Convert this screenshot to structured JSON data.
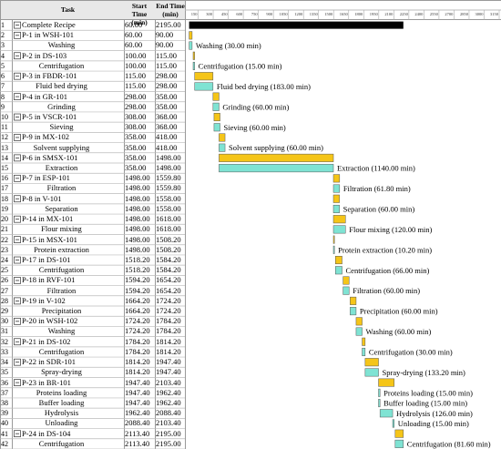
{
  "chart_data": {
    "type": "gantt",
    "columns": [
      "Task",
      "Start Time (min)",
      "End Time (min)"
    ],
    "xlim": [
      0,
      3150
    ],
    "xticks": [
      150,
      300,
      450,
      600,
      750,
      900,
      1050,
      1200,
      1350,
      1500,
      1650,
      1800,
      1950,
      2100,
      2250,
      2400,
      2550,
      2700,
      2850,
      3000,
      3150
    ],
    "colors": {
      "recipe": "#000000",
      "procedure": "#f5c518",
      "operation": "#7fe3d3"
    },
    "rows": [
      {
        "num": "1",
        "task": "Complete Recipe",
        "start": "60.00",
        "end": "2195.00",
        "kind": "recipe"
      },
      {
        "num": "2",
        "task": "P-1 in WSH-101",
        "start": "60.00",
        "end": "90.00",
        "kind": "procedure"
      },
      {
        "num": "3",
        "task": "Washing",
        "start": "60.00",
        "end": "90.00",
        "kind": "operation",
        "bar_label": "Washing (30.00 min)"
      },
      {
        "num": "4",
        "task": "P-2 in DS-103",
        "start": "100.00",
        "end": "115.00",
        "kind": "procedure"
      },
      {
        "num": "5",
        "task": "Centrifugation",
        "start": "100.00",
        "end": "115.00",
        "kind": "operation",
        "bar_label": "Centrifugation (15.00 min)"
      },
      {
        "num": "6",
        "task": "P-3 in FBDR-101",
        "start": "115.00",
        "end": "298.00",
        "kind": "procedure"
      },
      {
        "num": "7",
        "task": "Fluid bed drying",
        "start": "115.00",
        "end": "298.00",
        "kind": "operation",
        "bar_label": "Fluid bed drying (183.00 min)"
      },
      {
        "num": "8",
        "task": "P-4 in GR-101",
        "start": "298.00",
        "end": "358.00",
        "kind": "procedure"
      },
      {
        "num": "9",
        "task": "Grinding",
        "start": "298.00",
        "end": "358.00",
        "kind": "operation",
        "bar_label": "Grinding (60.00 min)"
      },
      {
        "num": "10",
        "task": "P-5 in VSCR-101",
        "start": "308.00",
        "end": "368.00",
        "kind": "procedure"
      },
      {
        "num": "11",
        "task": "Sieving",
        "start": "308.00",
        "end": "368.00",
        "kind": "operation",
        "bar_label": "Sieving (60.00 min)"
      },
      {
        "num": "12",
        "task": "P-9 in MX-102",
        "start": "358.00",
        "end": "418.00",
        "kind": "procedure"
      },
      {
        "num": "13",
        "task": "Solvent supplying",
        "start": "358.00",
        "end": "418.00",
        "kind": "operation",
        "bar_label": "Solvent supplying (60.00 min)"
      },
      {
        "num": "14",
        "task": "P-6 in SMSX-101",
        "start": "358.00",
        "end": "1498.00",
        "kind": "procedure"
      },
      {
        "num": "15",
        "task": "Extraction",
        "start": "358.00",
        "end": "1498.00",
        "kind": "operation",
        "bar_label": "Extraction (1140.00 min)"
      },
      {
        "num": "16",
        "task": "P-7 in ESP-101",
        "start": "1498.00",
        "end": "1559.80",
        "kind": "procedure"
      },
      {
        "num": "17",
        "task": "Filtration",
        "start": "1498.00",
        "end": "1559.80",
        "kind": "operation",
        "bar_label": "Filtration (61.80 min)"
      },
      {
        "num": "18",
        "task": "P-8 in V-101",
        "start": "1498.00",
        "end": "1558.00",
        "kind": "procedure"
      },
      {
        "num": "19",
        "task": "Separation",
        "start": "1498.00",
        "end": "1558.00",
        "kind": "operation",
        "bar_label": "Separation (60.00 min)"
      },
      {
        "num": "20",
        "task": "P-14 in MX-101",
        "start": "1498.00",
        "end": "1618.00",
        "kind": "procedure"
      },
      {
        "num": "21",
        "task": "Flour mixing",
        "start": "1498.00",
        "end": "1618.00",
        "kind": "operation",
        "bar_label": "Flour mixing (120.00 min)"
      },
      {
        "num": "22",
        "task": "P-15 in MSX-101",
        "start": "1498.00",
        "end": "1508.20",
        "kind": "procedure"
      },
      {
        "num": "23",
        "task": "Protein extraction",
        "start": "1498.00",
        "end": "1508.20",
        "kind": "operation",
        "bar_label": "Protein extraction (10.20 min)"
      },
      {
        "num": "24",
        "task": "P-17 in DS-101",
        "start": "1518.20",
        "end": "1584.20",
        "kind": "procedure"
      },
      {
        "num": "25",
        "task": "Centrifugation",
        "start": "1518.20",
        "end": "1584.20",
        "kind": "operation",
        "bar_label": "Centrifugation (66.00 min)"
      },
      {
        "num": "26",
        "task": "P-18 in RVF-101",
        "start": "1594.20",
        "end": "1654.20",
        "kind": "procedure"
      },
      {
        "num": "27",
        "task": "Filtration",
        "start": "1594.20",
        "end": "1654.20",
        "kind": "operation",
        "bar_label": "Filtration (60.00 min)"
      },
      {
        "num": "28",
        "task": "P-19 in V-102",
        "start": "1664.20",
        "end": "1724.20",
        "kind": "procedure"
      },
      {
        "num": "29",
        "task": "Precipitation",
        "start": "1664.20",
        "end": "1724.20",
        "kind": "operation",
        "bar_label": "Precipitation (60.00 min)"
      },
      {
        "num": "30",
        "task": "P-20 in WSH-102",
        "start": "1724.20",
        "end": "1784.20",
        "kind": "procedure"
      },
      {
        "num": "31",
        "task": "Washing",
        "start": "1724.20",
        "end": "1784.20",
        "kind": "operation",
        "bar_label": "Washing (60.00 min)"
      },
      {
        "num": "32",
        "task": "P-21 in DS-102",
        "start": "1784.20",
        "end": "1814.20",
        "kind": "procedure"
      },
      {
        "num": "33",
        "task": "Centrifugation",
        "start": "1784.20",
        "end": "1814.20",
        "kind": "operation",
        "bar_label": "Centrifugation (30.00 min)"
      },
      {
        "num": "34",
        "task": "P-22 in SDR-101",
        "start": "1814.20",
        "end": "1947.40",
        "kind": "procedure"
      },
      {
        "num": "35",
        "task": "Spray-drying",
        "start": "1814.20",
        "end": "1947.40",
        "kind": "operation",
        "bar_label": "Spray-drying (133.20 min)"
      },
      {
        "num": "36",
        "task": "P-23 in BR-101",
        "start": "1947.40",
        "end": "2103.40",
        "kind": "procedure"
      },
      {
        "num": "37",
        "task": "Proteins loading",
        "start": "1947.40",
        "end": "1962.40",
        "kind": "operation",
        "bar_label": "Proteins loading (15.00 min)"
      },
      {
        "num": "38",
        "task": "Buffer loading",
        "start": "1947.40",
        "end": "1962.40",
        "kind": "operation",
        "bar_label": "Buffer loading (15.00 min)"
      },
      {
        "num": "39",
        "task": "Hydrolysis",
        "start": "1962.40",
        "end": "2088.40",
        "kind": "operation",
        "bar_label": "Hydrolysis (126.00 min)"
      },
      {
        "num": "40",
        "task": "Unloading",
        "start": "2088.40",
        "end": "2103.40",
        "kind": "operation",
        "bar_label": "Unloading (15.00 min)"
      },
      {
        "num": "41",
        "task": "P-24 in DS-104",
        "start": "2113.40",
        "end": "2195.00",
        "kind": "procedure"
      },
      {
        "num": "42",
        "task": "Centrifugation",
        "start": "2113.40",
        "end": "2195.00",
        "kind": "operation",
        "bar_label": "Centrifugation (81.60 min)"
      }
    ]
  }
}
